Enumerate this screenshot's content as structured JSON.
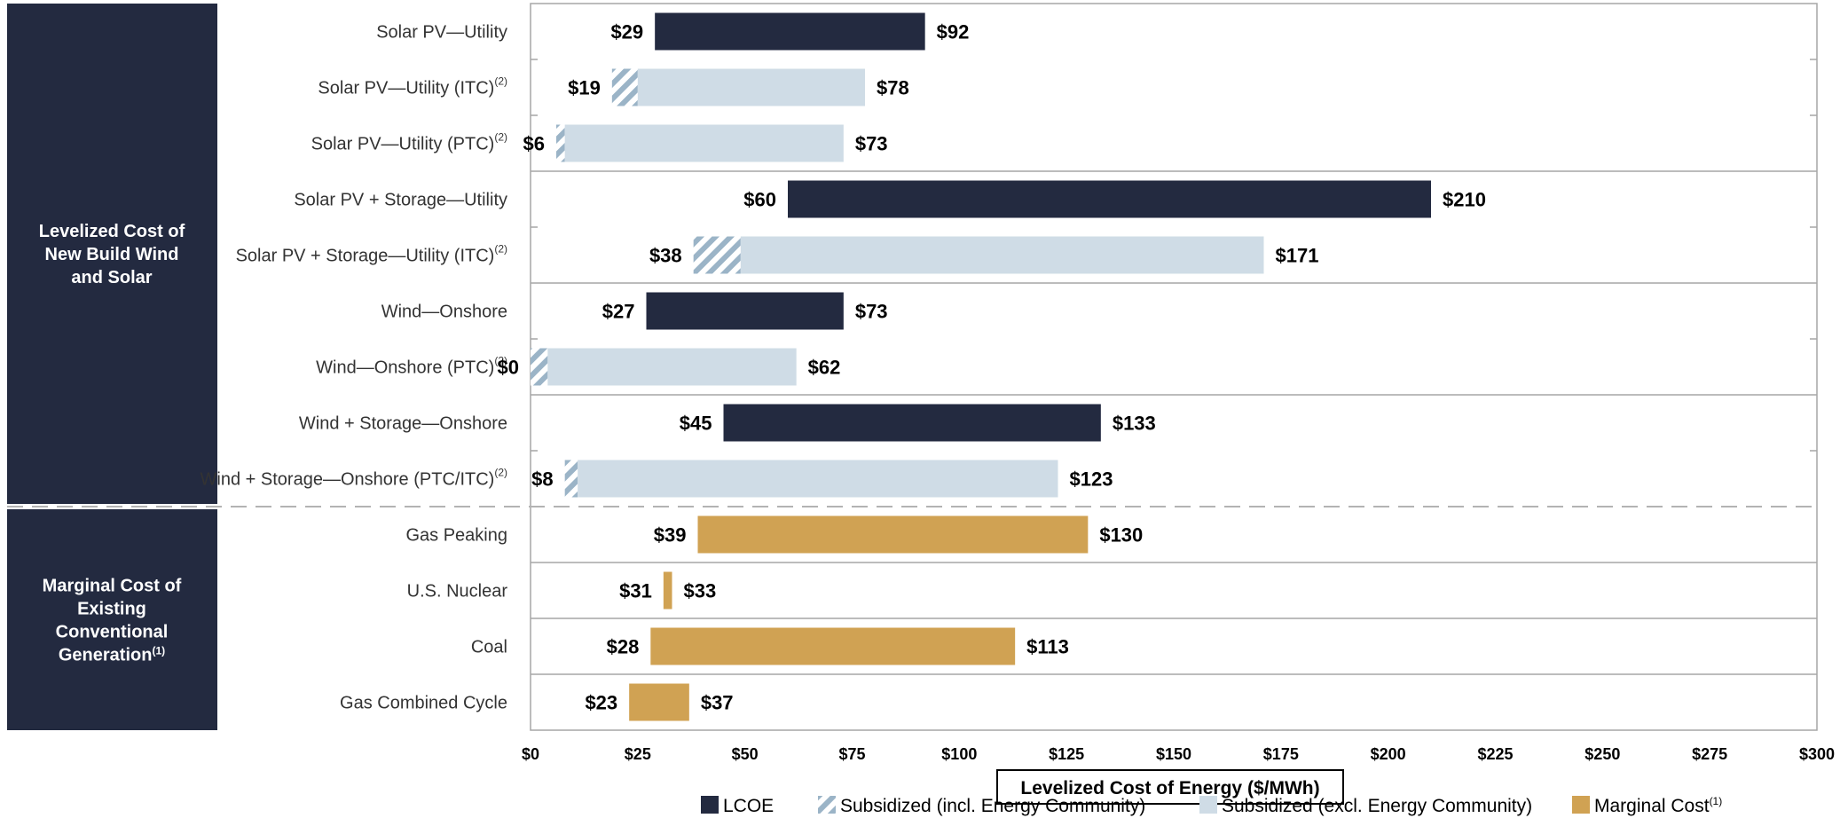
{
  "colors": {
    "lcoe": "#232a40",
    "subsidized_light": "#cfdce6",
    "hatch_stripe": "#9bb4c7",
    "marginal": "#d0a253",
    "panel": "#232a40",
    "grid": "#bfbfbf"
  },
  "sections": [
    {
      "label_lines": [
        "Levelized Cost of",
        "New Build Wind",
        "and Solar"
      ],
      "superscript": "",
      "rows": [
        0,
        8
      ]
    },
    {
      "label_lines": [
        "Marginal Cost of",
        "Existing",
        "Conventional",
        "Generation"
      ],
      "superscript": "(1)",
      "rows": [
        9,
        12
      ]
    }
  ],
  "chart_data": {
    "type": "bar",
    "orientation": "horizontal",
    "xlabel": "Levelized Cost of Energy ($/MWh)",
    "xlim": [
      0,
      300
    ],
    "xticks": [
      "$0",
      "$25",
      "$50",
      "$75",
      "$100",
      "$125",
      "$150",
      "$175",
      "$200",
      "$225",
      "$250",
      "$275",
      "$300"
    ],
    "legend": [
      {
        "key": "lcoe",
        "label": "LCOE",
        "superscript": ""
      },
      {
        "key": "hatch",
        "label": "Subsidized (incl. Energy Community)",
        "superscript": ""
      },
      {
        "key": "subsidized",
        "label": "Subsidized (excl. Energy Community)",
        "superscript": ""
      },
      {
        "key": "marginal",
        "label": "Marginal Cost",
        "superscript": "(1)"
      }
    ],
    "categories": [
      {
        "label": "Solar PV—Utility",
        "superscript": "",
        "kind": "lcoe",
        "low": 29,
        "high": 92,
        "low_label": "$29",
        "high_label": "$92"
      },
      {
        "label": "Solar PV—Utility (ITC)",
        "superscript": "(2)",
        "kind": "subsidized",
        "low": 19,
        "hatch_end": 25,
        "high": 78,
        "low_label": "$19",
        "high_label": "$78"
      },
      {
        "label": "Solar PV—Utility (PTC)",
        "superscript": "(2)",
        "kind": "subsidized",
        "low": 6,
        "hatch_end": 8,
        "high": 73,
        "low_label": "$6",
        "high_label": "$73"
      },
      {
        "label": "Solar PV + Storage—Utility",
        "superscript": "",
        "kind": "lcoe",
        "low": 60,
        "high": 210,
        "low_label": "$60",
        "high_label": "$210"
      },
      {
        "label": "Solar PV + Storage—Utility (ITC)",
        "superscript": "(2)",
        "kind": "subsidized",
        "low": 38,
        "hatch_end": 49,
        "high": 171,
        "low_label": "$38",
        "high_label": "$171"
      },
      {
        "label": "Wind—Onshore",
        "superscript": "",
        "kind": "lcoe",
        "low": 27,
        "high": 73,
        "low_label": "$27",
        "high_label": "$73"
      },
      {
        "label": "Wind—Onshore (PTC)",
        "superscript": "(2)",
        "kind": "subsidized",
        "low": 0,
        "hatch_end": 4,
        "high": 62,
        "low_label": "$0",
        "high_label": "$62"
      },
      {
        "label": "Wind + Storage—Onshore",
        "superscript": "",
        "kind": "lcoe",
        "low": 45,
        "high": 133,
        "low_label": "$45",
        "high_label": "$133"
      },
      {
        "label": "Wind + Storage—Onshore (PTC/ITC)",
        "superscript": "(2)",
        "kind": "subsidized",
        "low": 8,
        "hatch_end": 11,
        "high": 123,
        "low_label": "$8",
        "high_label": "$123"
      },
      {
        "label": "Gas Peaking",
        "superscript": "",
        "kind": "marginal",
        "low": 39,
        "high": 130,
        "low_label": "$39",
        "high_label": "$130"
      },
      {
        "label": "U.S. Nuclear",
        "superscript": "",
        "kind": "marginal",
        "low": 31,
        "high": 33,
        "low_label": "$31",
        "high_label": "$33"
      },
      {
        "label": "Coal",
        "superscript": "",
        "kind": "marginal",
        "low": 28,
        "high": 113,
        "low_label": "$28",
        "high_label": "$113"
      },
      {
        "label": "Gas Combined Cycle",
        "superscript": "",
        "kind": "marginal",
        "low": 23,
        "high": 37,
        "low_label": "$23",
        "high_label": "$37"
      }
    ]
  }
}
